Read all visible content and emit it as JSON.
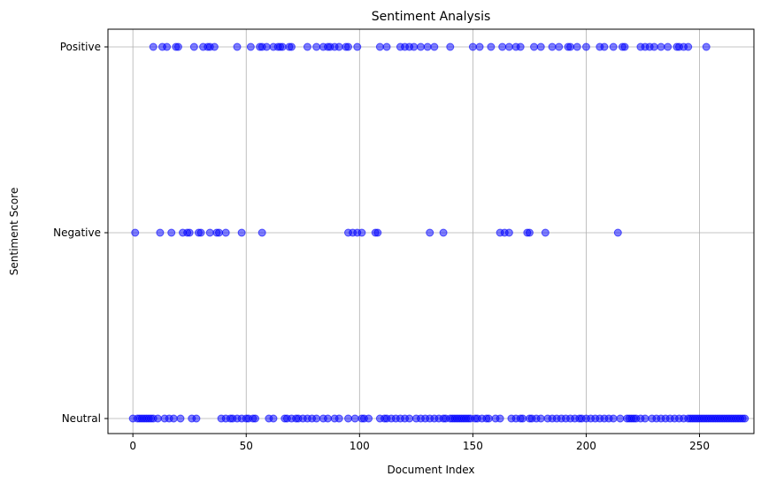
{
  "chart_data": {
    "type": "scatter",
    "title": "Sentiment Analysis",
    "xlabel": "Document Index",
    "ylabel": "Sentiment Score",
    "xlim": [
      -11,
      274
    ],
    "x_ticks": [
      0,
      50,
      100,
      150,
      200,
      250
    ],
    "y_categories": [
      "Neutral",
      "Negative",
      "Positive"
    ],
    "grid": true,
    "legend": "none",
    "marker_color": "#0000ff",
    "marker_opacity": 0.5,
    "series": [
      {
        "values": {
          "Positive": [
            9,
            13,
            15,
            19,
            20,
            27,
            31,
            33,
            34,
            36,
            46,
            52,
            56,
            57,
            59,
            62,
            64,
            65,
            66,
            69,
            70,
            77,
            81,
            84,
            86,
            87,
            89,
            91,
            94,
            95,
            99,
            109,
            112,
            118,
            120,
            122,
            124,
            127,
            130,
            133,
            140,
            150,
            153,
            158,
            163,
            166,
            169,
            171,
            177,
            180,
            185,
            188,
            192,
            193,
            196,
            200,
            206,
            208,
            212,
            216,
            217,
            224,
            226,
            228,
            230,
            233,
            236,
            240,
            241,
            243,
            245,
            253
          ],
          "Negative": [
            1,
            12,
            17,
            22,
            24,
            25,
            29,
            30,
            34,
            37,
            38,
            41,
            48,
            57,
            95,
            97,
            99,
            101,
            107,
            108,
            131,
            137,
            162,
            164,
            166,
            174,
            175,
            182,
            214
          ],
          "Neutral": [
            0,
            2,
            3,
            4,
            5,
            6,
            7,
            8,
            9,
            11,
            14,
            16,
            18,
            21,
            26,
            28,
            39,
            41,
            43,
            44,
            46,
            48,
            50,
            51,
            53,
            54,
            60,
            62,
            67,
            68,
            70,
            72,
            73,
            75,
            77,
            79,
            81,
            84,
            86,
            89,
            91,
            95,
            98,
            101,
            102,
            104,
            109,
            111,
            112,
            114,
            116,
            118,
            120,
            122,
            125,
            127,
            129,
            131,
            133,
            135,
            137,
            138,
            140,
            141,
            142,
            143,
            144,
            145,
            146,
            147,
            148,
            149,
            151,
            152,
            154,
            156,
            157,
            160,
            162,
            167,
            169,
            171,
            172,
            175,
            176,
            178,
            180,
            183,
            185,
            187,
            189,
            191,
            193,
            195,
            197,
            198,
            200,
            202,
            204,
            206,
            208,
            210,
            212,
            215,
            218,
            219,
            220,
            221,
            222,
            224,
            226,
            229,
            231,
            233,
            235,
            237,
            239,
            241,
            243,
            245,
            246,
            247,
            248,
            249,
            250,
            251,
            252,
            253,
            254,
            255,
            256,
            257,
            258,
            259,
            260,
            261,
            262,
            263,
            264,
            265,
            266,
            267,
            268,
            269,
            270
          ]
        }
      }
    ]
  }
}
